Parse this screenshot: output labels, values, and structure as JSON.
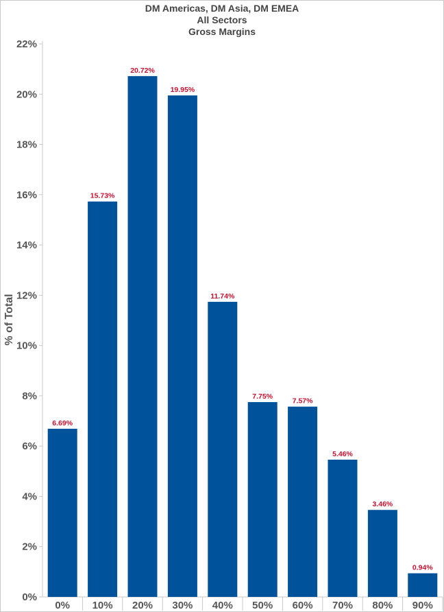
{
  "titles": [
    "DM Americas, DM Asia, DM EMEA",
    "All Sectors",
    "Gross Margins"
  ],
  "chart_data": {
    "type": "bar",
    "title": "DM Americas, DM Asia, DM EMEA",
    "subtitles": [
      "All Sectors",
      "Gross Margins"
    ],
    "xlabel": "",
    "ylabel": "% of Total",
    "categories": [
      "0%",
      "10%",
      "20%",
      "30%",
      "40%",
      "50%",
      "60%",
      "70%",
      "80%",
      "90%"
    ],
    "values": [
      6.69,
      15.73,
      20.72,
      19.95,
      11.74,
      7.75,
      7.57,
      5.46,
      3.46,
      0.94
    ],
    "data_labels": [
      "6.69%",
      "15.73%",
      "20.72%",
      "19.95%",
      "11.74%",
      "7.75%",
      "7.57%",
      "5.46%",
      "3.46%",
      "0.94%"
    ],
    "ylim": [
      0,
      22
    ],
    "yticks": [
      0,
      2,
      4,
      6,
      8,
      10,
      12,
      14,
      16,
      18,
      20,
      22
    ],
    "ytick_labels": [
      "0%",
      "2%",
      "4%",
      "6%",
      "8%",
      "10%",
      "12%",
      "14%",
      "16%",
      "18%",
      "20%",
      "22%"
    ],
    "grid": false,
    "legend": "none",
    "colors": {
      "bar": "#00529b",
      "data_label": "#c8102e",
      "text": "#555555",
      "axis": "#c8c8c8"
    }
  }
}
